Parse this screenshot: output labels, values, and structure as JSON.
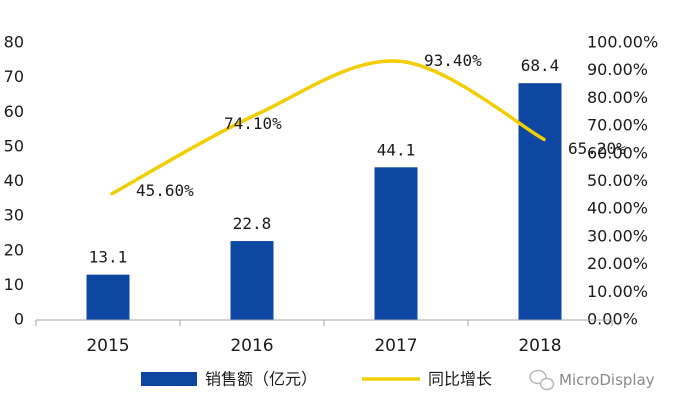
{
  "chart_data": {
    "type": "bar",
    "categories": [
      "2015",
      "2016",
      "2017",
      "2018"
    ],
    "series": [
      {
        "name": "销售额（亿元）",
        "type": "bar",
        "axis": "left",
        "values": [
          13.1,
          22.8,
          44.1,
          68.4
        ],
        "labels": [
          "13.1",
          "22.8",
          "44.1",
          "68.4"
        ],
        "color": "#0d47a1"
      },
      {
        "name": "同比增长",
        "type": "line",
        "axis": "right",
        "values": [
          45.6,
          74.1,
          93.4,
          65.2
        ],
        "labels": [
          "45.60%",
          "74.10%",
          "93.40%",
          "65.20%"
        ],
        "color": "#f2cd00"
      }
    ],
    "y_left": {
      "ylim": [
        0,
        80
      ],
      "ticks": [
        "0",
        "10",
        "20",
        "30",
        "40",
        "50",
        "60",
        "70",
        "80"
      ]
    },
    "y_right": {
      "ylim": [
        0,
        100
      ],
      "ticks": [
        "0.00%",
        "10.00%",
        "20.00%",
        "30.00%",
        "40.00%",
        "50.00%",
        "60.00%",
        "70.00%",
        "80.00%",
        "90.00%",
        "100.00%"
      ]
    },
    "legend": {
      "placement": "bottom",
      "entries": [
        "销售额（亿元）",
        "同比增长"
      ]
    },
    "grid": false
  },
  "watermark": {
    "text": "MicroDisplay",
    "icon": "wechat-icon"
  }
}
